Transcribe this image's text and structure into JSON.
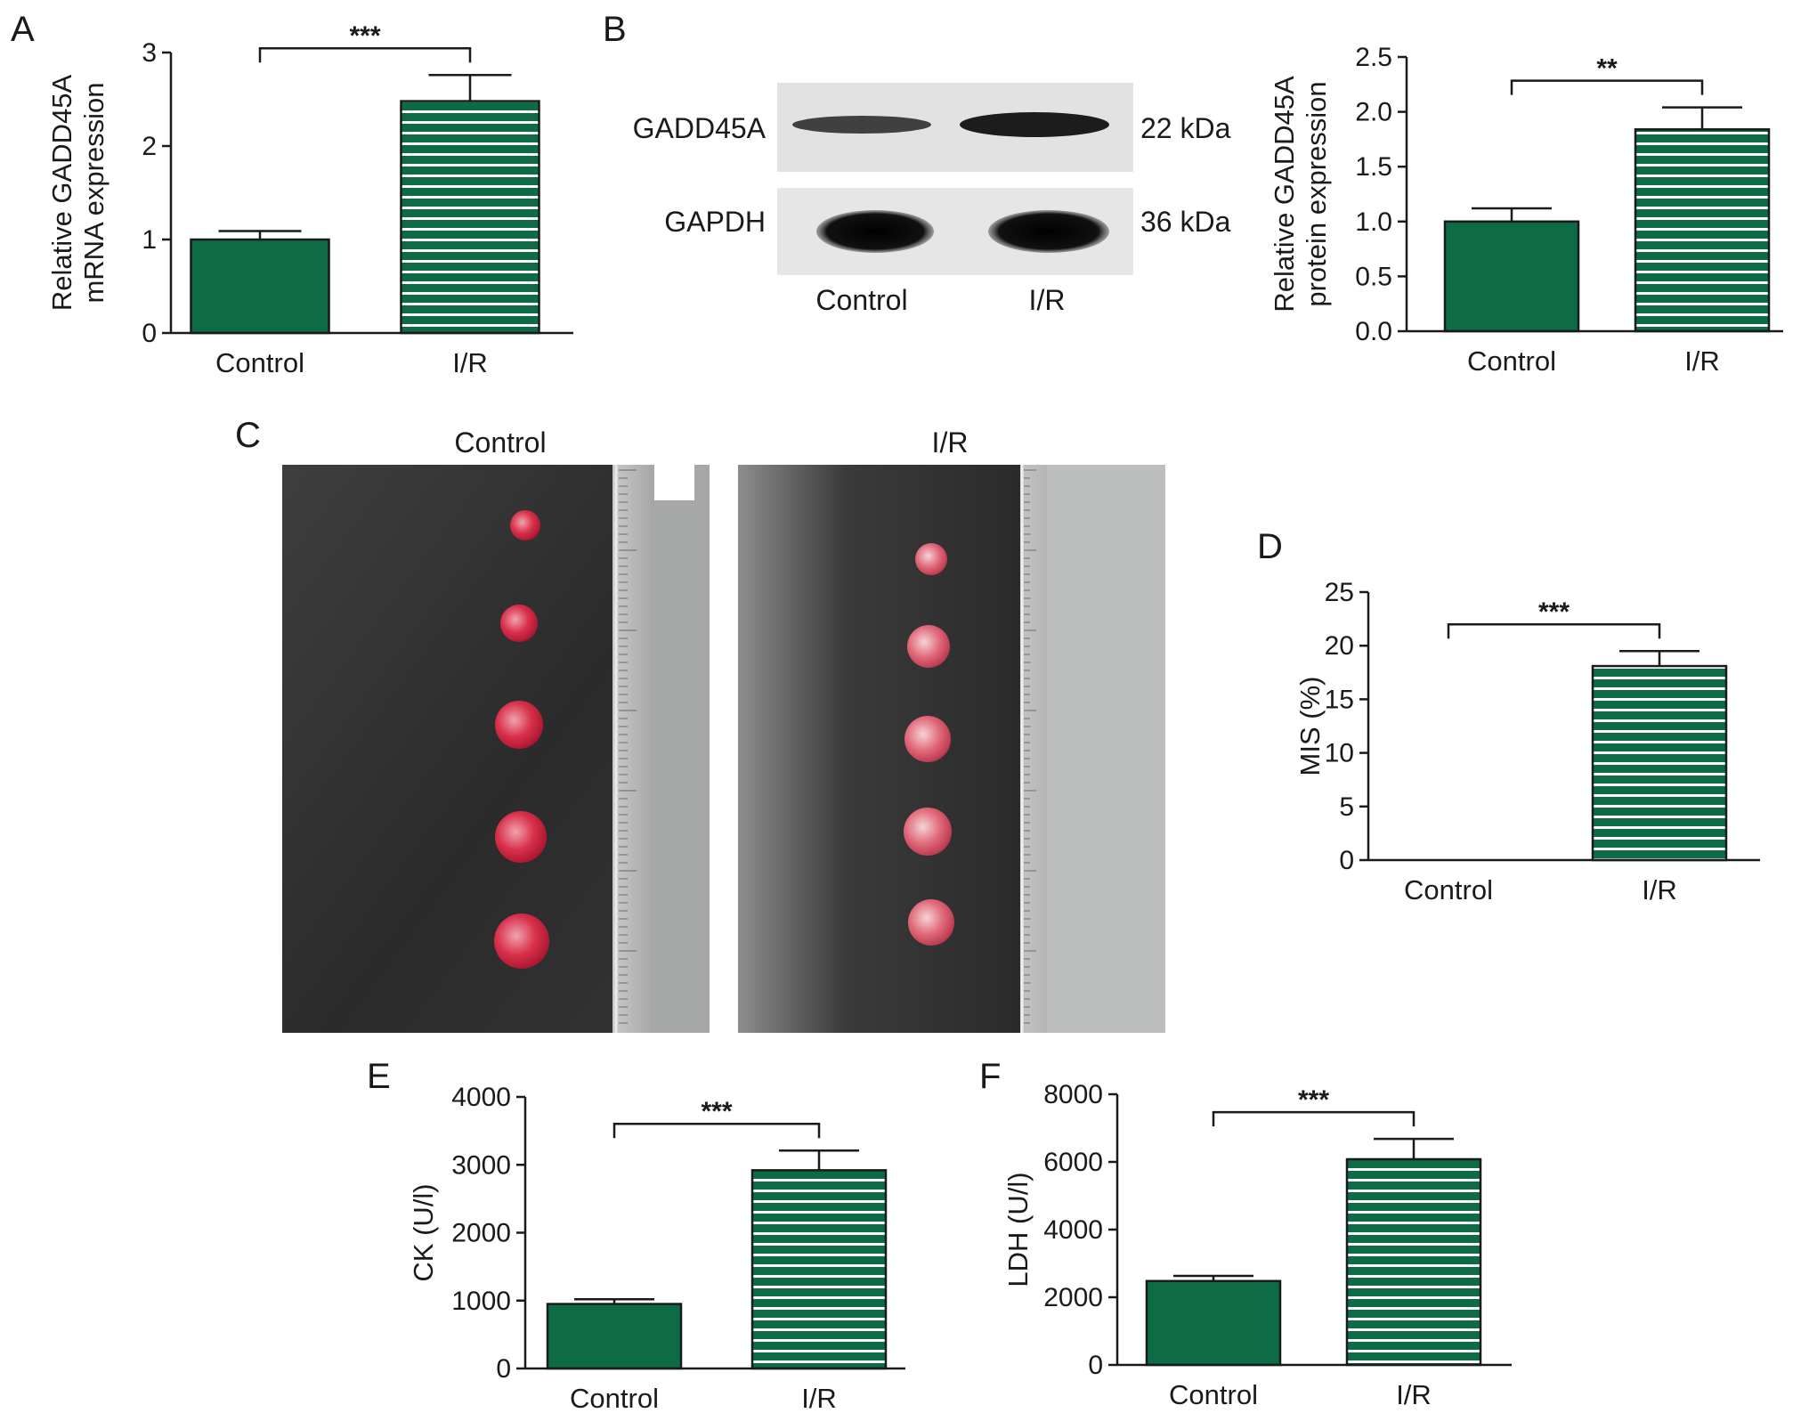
{
  "colors": {
    "bar_fill": "#0d6b45",
    "stripe": "#ffffff",
    "axis": "#1a1a1a",
    "sig_marker": "#555555"
  },
  "panels": {
    "a": "A",
    "b": "B",
    "c": "C",
    "d": "D",
    "e": "E",
    "f": "F"
  },
  "blot": {
    "rows": [
      "GADD45A",
      "GAPDH"
    ],
    "sizes": [
      "22 kDa",
      "36 kDa"
    ],
    "lanes": [
      "Control",
      "I/R"
    ]
  },
  "photos": {
    "left_label": "Control",
    "right_label": "I/R"
  },
  "chart_data": [
    {
      "panel": "A",
      "type": "bar",
      "categories": [
        "Control",
        "I/R"
      ],
      "values": [
        1.0,
        2.48
      ],
      "errors": [
        0.09,
        0.28
      ],
      "ylabel": [
        "Relative GADD45A",
        "mRNA expression"
      ],
      "ylim": [
        0,
        3
      ],
      "yticks": [
        0,
        1,
        2,
        3
      ],
      "tick_decimals": 0,
      "significance": "***",
      "grid": false
    },
    {
      "panel": "B",
      "type": "bar",
      "categories": [
        "Control",
        "I/R"
      ],
      "values": [
        1.0,
        1.84
      ],
      "errors": [
        0.12,
        0.2
      ],
      "ylabel": [
        "Relative GADD45A",
        "protein expression"
      ],
      "ylim": [
        0,
        2.5
      ],
      "yticks": [
        0,
        0.5,
        1.0,
        1.5,
        2.0,
        2.5
      ],
      "tick_decimals": 1,
      "significance": "**",
      "grid": false
    },
    {
      "panel": "D",
      "type": "bar",
      "categories": [
        "Control",
        "I/R"
      ],
      "values": [
        0,
        18.1
      ],
      "errors": [
        0,
        1.4
      ],
      "ylabel": [
        "MIS (%)"
      ],
      "ylim": [
        0,
        25
      ],
      "yticks": [
        0,
        5,
        10,
        15,
        20,
        25
      ],
      "tick_decimals": 0,
      "significance": "***",
      "grid": false
    },
    {
      "panel": "E",
      "type": "bar",
      "categories": [
        "Control",
        "I/R"
      ],
      "values": [
        950,
        2920
      ],
      "errors": [
        70,
        290
      ],
      "ylabel": [
        "CK (U/l)"
      ],
      "ylim": [
        0,
        4000
      ],
      "yticks": [
        0,
        1000,
        2000,
        3000,
        4000
      ],
      "tick_decimals": 0,
      "significance": "***",
      "grid": false
    },
    {
      "panel": "F",
      "type": "bar",
      "categories": [
        "Control",
        "I/R"
      ],
      "values": [
        2480,
        6080
      ],
      "errors": [
        150,
        600
      ],
      "ylabel": [
        "LDH (U/l)"
      ],
      "ylim": [
        0,
        8000
      ],
      "yticks": [
        0,
        2000,
        4000,
        6000,
        8000
      ],
      "tick_decimals": 0,
      "significance": "***",
      "grid": false
    }
  ]
}
